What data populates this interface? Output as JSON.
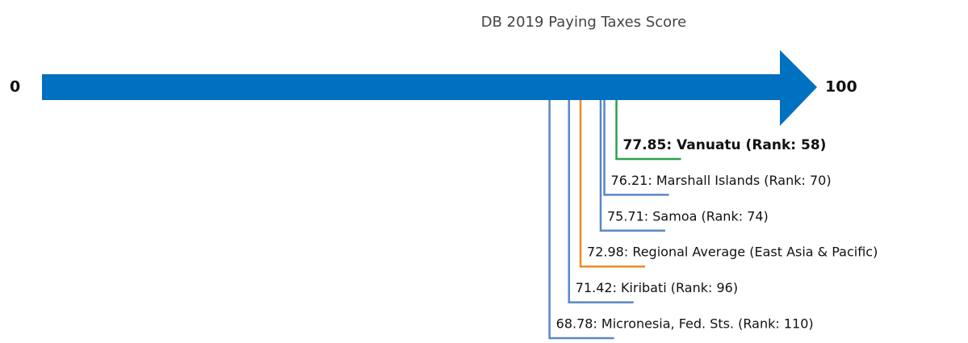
{
  "chart_data": {
    "type": "scale",
    "title": "DB 2019 Paying Taxes Score",
    "xlim": [
      0,
      100
    ],
    "xticks": [
      0,
      100
    ],
    "arrow_color": "#0070c0",
    "values": [
      77.85,
      76.21,
      75.71,
      72.98,
      71.42,
      68.78
    ],
    "value_labels": [
      "77.85: Vanuatu (Rank: 58)",
      "76.21: Marshall Islands (Rank: 70)",
      "75.71: Samoa (Rank: 74)",
      "72.98: Regional Average (East Asia & Pacific)",
      "71.42: Kiribati (Rank: 96)",
      "68.78: Micronesia, Fed. Sts. (Rank: 110)"
    ],
    "colors": [
      "#2ca04c",
      "#5b87c5",
      "#5b87c5",
      "#f08a24",
      "#5b87c5",
      "#5b87c5"
    ],
    "highlight": 0
  }
}
